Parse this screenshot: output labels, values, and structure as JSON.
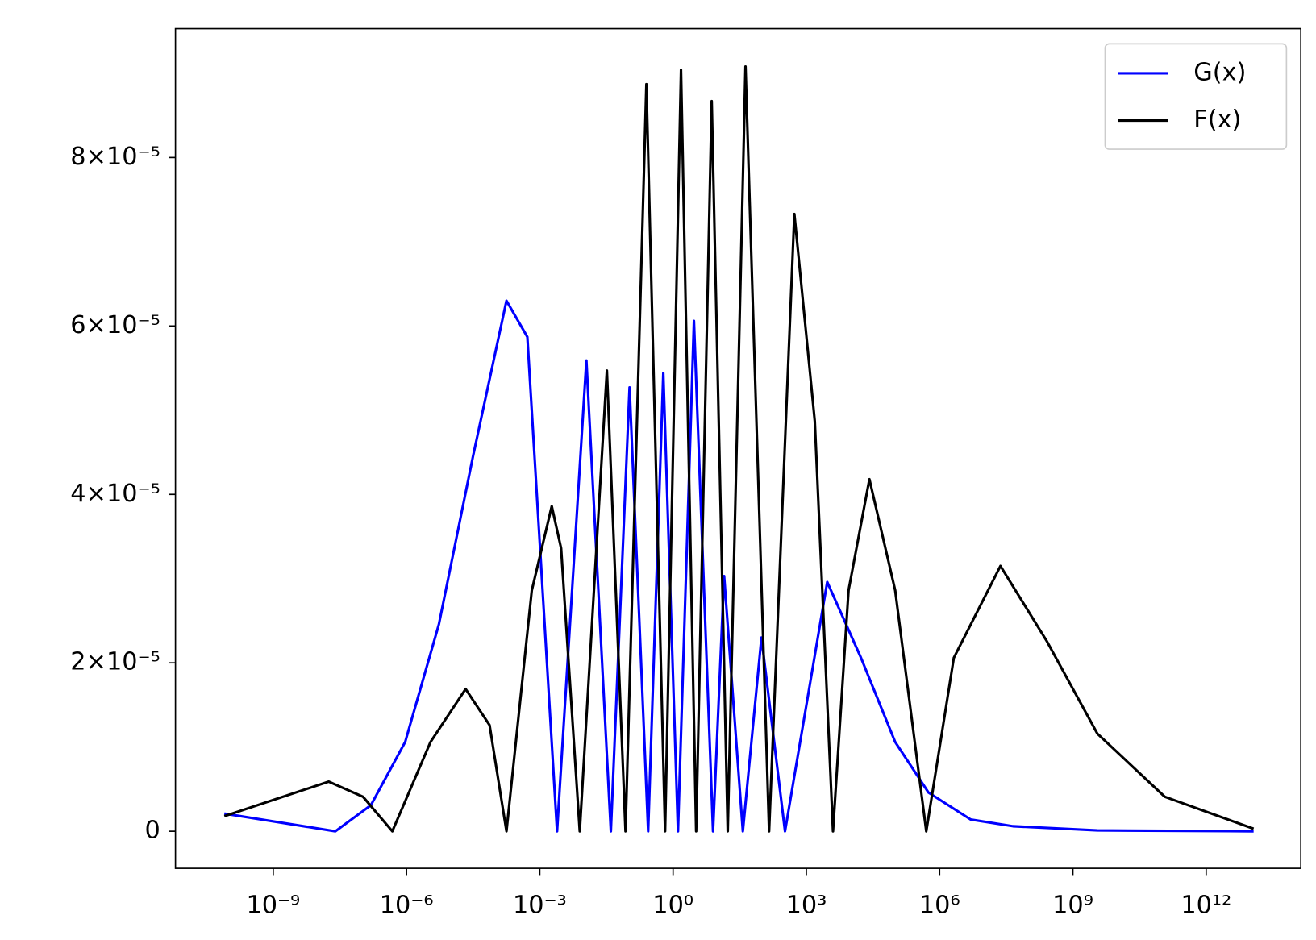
{
  "chart_data": {
    "type": "line",
    "xscale": "log",
    "xlim": [
      6.3e-12,
      135000000000000.0
    ],
    "ylim": [
      -4.4e-06,
      9.53e-05
    ],
    "xticks": [
      {
        "value": 1e-09,
        "label": "10⁻⁹"
      },
      {
        "value": 1e-06,
        "label": "10⁻⁶"
      },
      {
        "value": 0.001,
        "label": "10⁻³"
      },
      {
        "value": 1,
        "label": "10⁰"
      },
      {
        "value": 1000.0,
        "label": "10³"
      },
      {
        "value": 1000000.0,
        "label": "10⁶"
      },
      {
        "value": 1000000000.0,
        "label": "10⁹"
      },
      {
        "value": 1000000000000.0,
        "label": "10¹²"
      }
    ],
    "yticks": [
      0,
      {
        "value": 2e-05,
        "label": "2×10⁻⁵"
      },
      {
        "value": 4e-05,
        "label": "4×10⁻⁵"
      },
      {
        "value": 6e-05,
        "label": "6×10⁻⁵"
      },
      {
        "value": 8e-05,
        "label": "8×10⁻⁵"
      }
    ],
    "legend": "upper right",
    "series": [
      {
        "name": "G(x)",
        "color": "#0000ff",
        "x": [
          7.94e-11,
          2.51e-08,
          1.58e-07,
          9.33e-07,
          5.37e-06,
          3.16e-05,
          0.000178,
          0.000525,
          0.00245,
          0.0112,
          0.0398,
          0.105,
          0.275,
          0.603,
          1.29,
          2.95,
          7.94,
          14.1,
          37.2,
          97.7,
          331,
          2951,
          16982,
          100000,
          562000,
          5010000,
          44700000,
          3550000000,
          11700000000000
        ],
        "values": [
          2.1e-06,
          0,
          3.1e-06,
          1.06e-05,
          2.46e-05,
          4.46e-05,
          6.3e-05,
          5.87e-05,
          0,
          5.59e-05,
          0,
          5.27e-05,
          0,
          5.44e-05,
          0,
          6.06e-05,
          0,
          3.03e-05,
          0,
          2.3e-05,
          0,
          2.96e-05,
          2.06e-05,
          1.06e-05,
          4.6e-06,
          1.4e-06,
          6e-07,
          1e-07,
          0
        ]
      },
      {
        "name": "F(x)",
        "color": "#000000",
        "x": [
          7.94e-11,
          1.78e-08,
          1.05e-07,
          4.79e-07,
          3.47e-06,
          2.14e-05,
          7.41e-05,
          0.000178,
          0.000661,
          0.00186,
          0.00302,
          0.00794,
          0.0324,
          0.0851,
          0.251,
          0.661,
          1.51,
          3.31,
          7.41,
          17,
          42.7,
          145,
          537,
          1549,
          3981,
          8913,
          26303,
          100000,
          501000,
          2090000,
          23400000,
          257000000,
          3550000000,
          117000000000,
          11700000000000
        ],
        "values": [
          1.8e-06,
          5.9e-06,
          4.1e-06,
          0,
          1.06e-05,
          1.69e-05,
          1.26e-05,
          0,
          2.86e-05,
          3.86e-05,
          3.36e-05,
          0,
          5.47e-05,
          0,
          8.87e-05,
          0,
          9.04e-05,
          0,
          8.67e-05,
          0,
          9.08e-05,
          0,
          7.33e-05,
          4.87e-05,
          0,
          2.86e-05,
          4.18e-05,
          2.86e-05,
          0,
          2.06e-05,
          3.15e-05,
          2.26e-05,
          1.16e-05,
          4.1e-06,
          3e-07
        ]
      }
    ]
  }
}
